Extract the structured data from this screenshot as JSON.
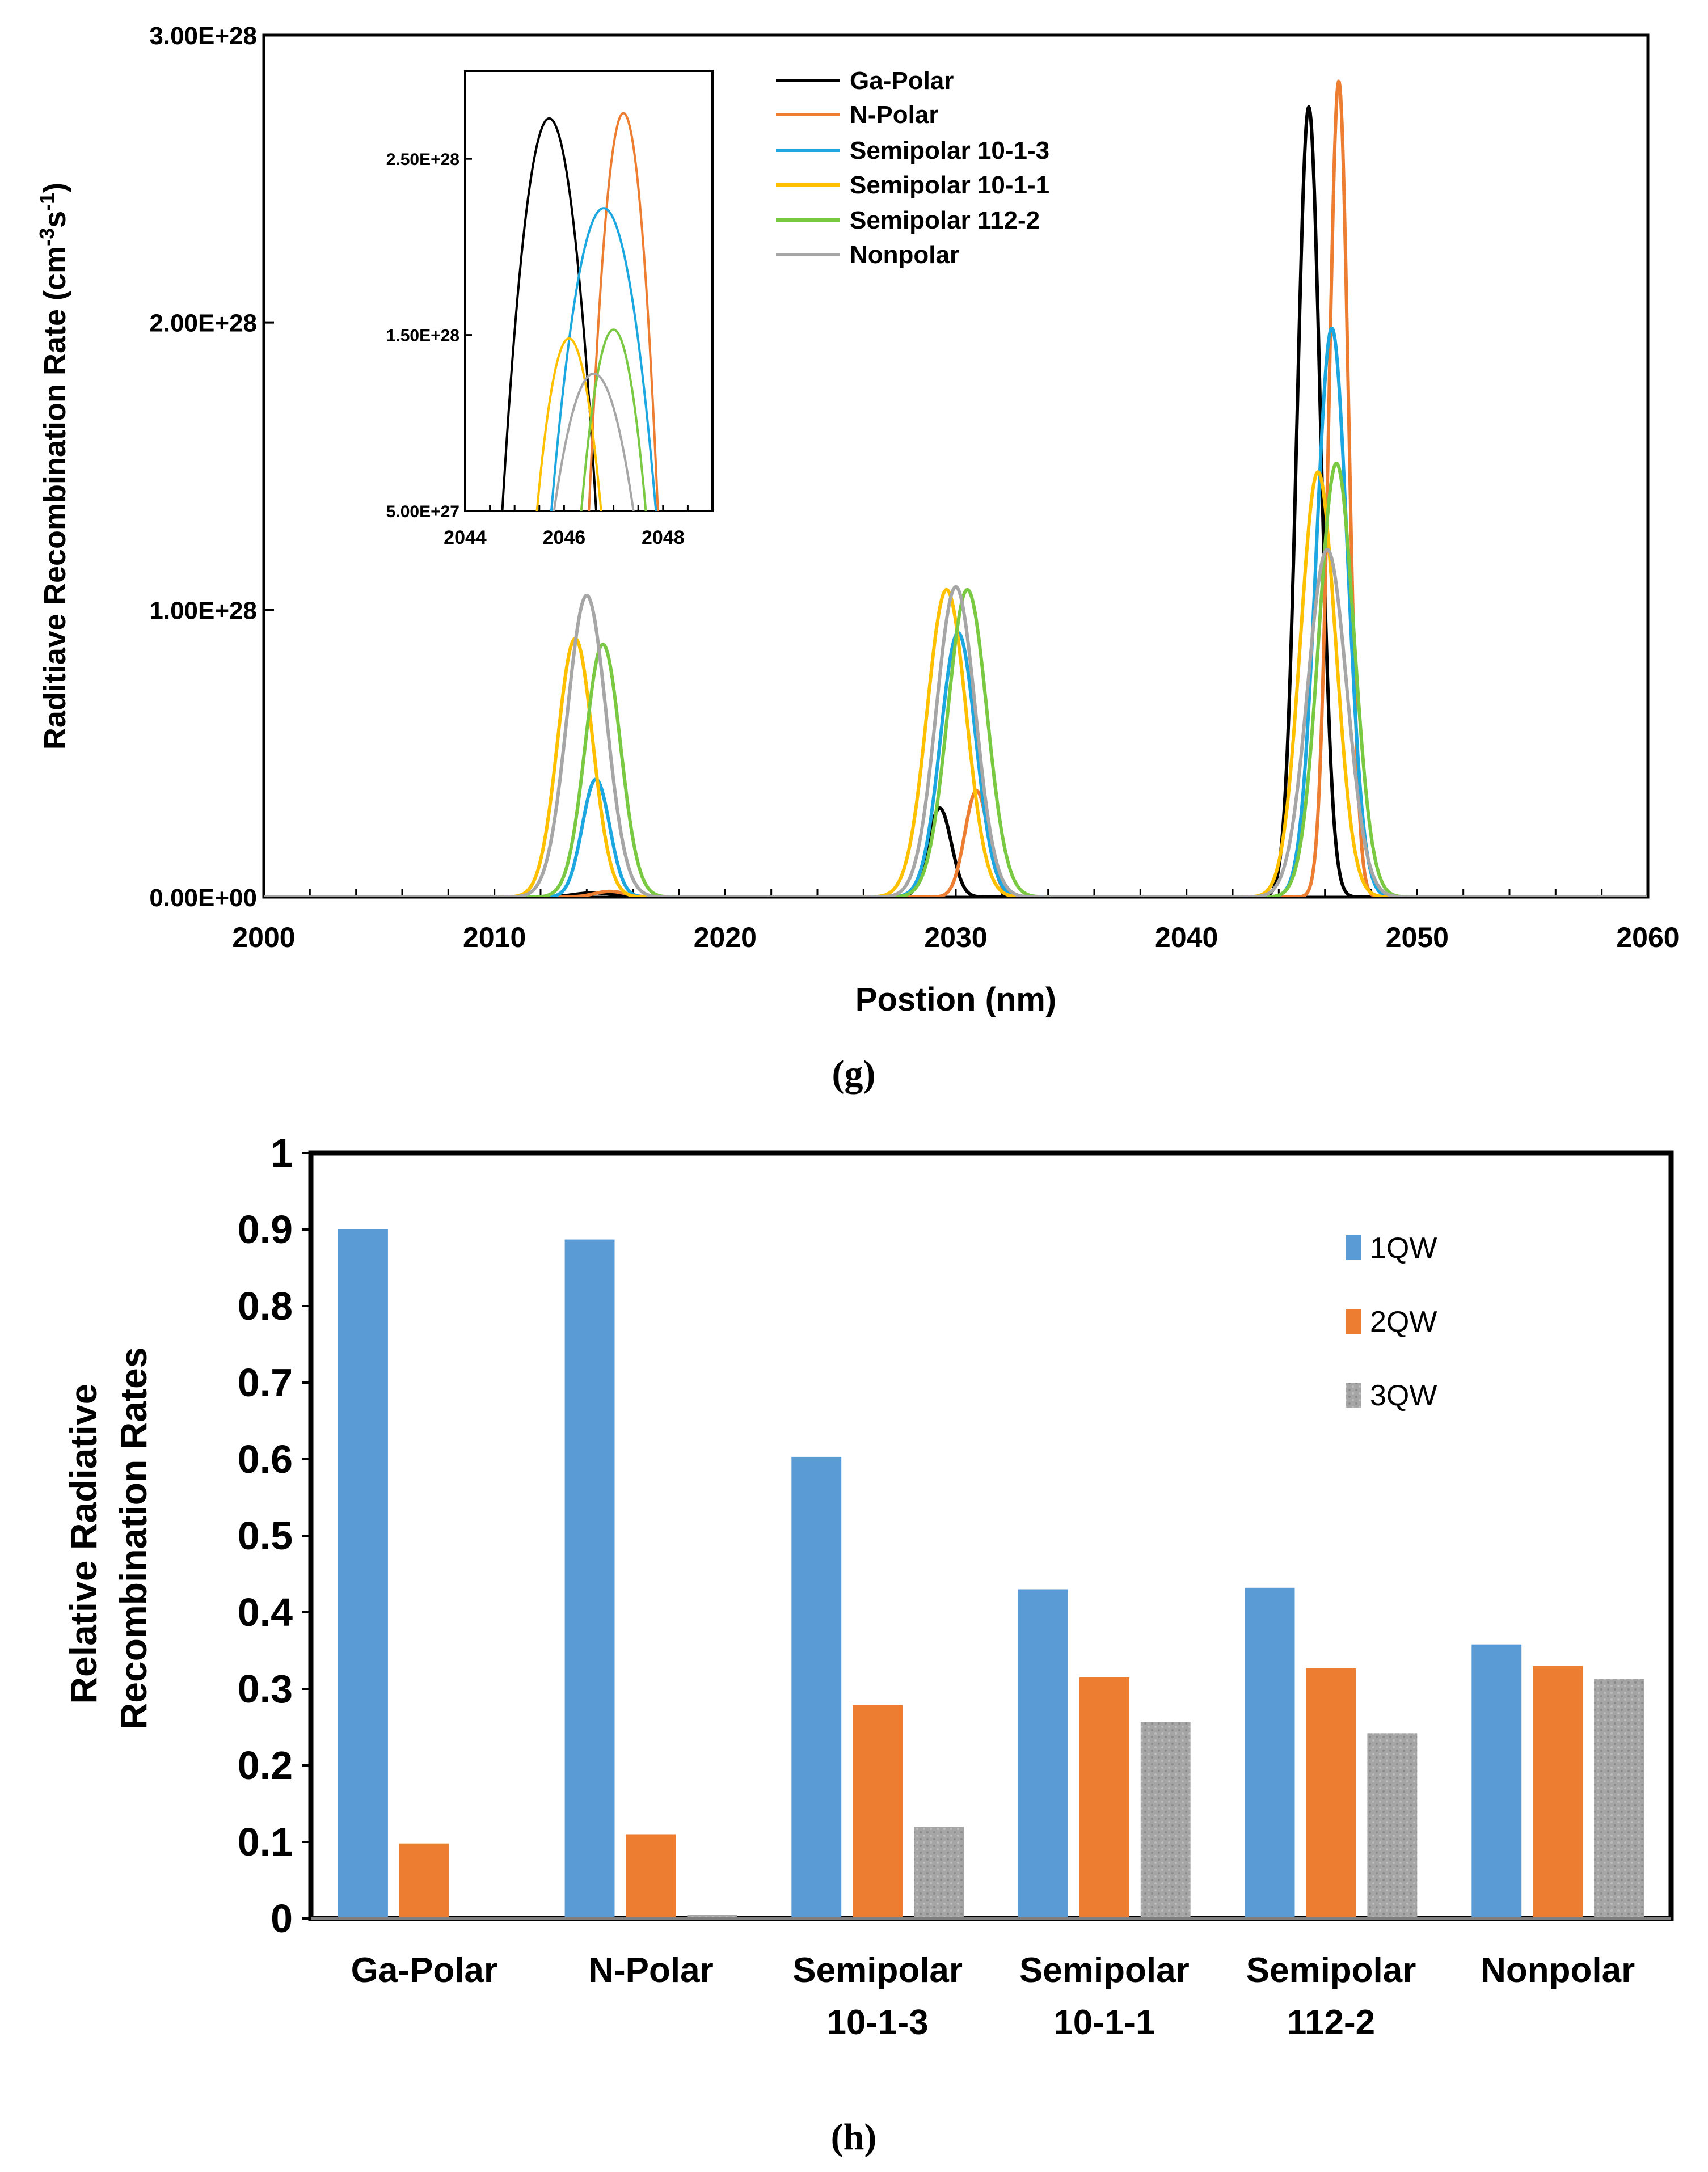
{
  "chart_data": [
    {
      "type": "line",
      "panel_label": "(g)",
      "xlabel": "Postion (nm)",
      "ylabel_main": "Raditiave Recombination Rate (cm",
      "ylabel_sup1": "-3",
      "ylabel_mid": "s",
      "ylabel_sup2": "-1",
      "ylabel_end": ")",
      "xlim": [
        2000,
        2060
      ],
      "ylim": [
        0,
        3e+28
      ],
      "x_ticks": [
        2000,
        2010,
        2020,
        2030,
        2040,
        2050,
        2060
      ],
      "y_ticks": [
        0,
        1e+28,
        2e+28,
        3e+28
      ],
      "y_tick_labels": [
        "0.00E+00",
        "1.00E+28",
        "2.00E+28",
        "3.00E+28"
      ],
      "legend_position": "top-center",
      "series": [
        {
          "name": "Ga-Polar",
          "color": "#000000",
          "peaks": [
            {
              "center": 2014.3,
              "height": 1.5e+26,
              "width": 1.0
            },
            {
              "center": 2029.3,
              "height": 3.1e+27,
              "width": 0.6
            },
            {
              "center": 2045.3,
              "height": 2.75e+28,
              "width": 0.6
            }
          ]
        },
        {
          "name": "N-Polar",
          "color": "#ED7D31",
          "peaks": [
            {
              "center": 2015.0,
              "height": 2e+26,
              "width": 0.8
            },
            {
              "center": 2030.9,
              "height": 3.7e+27,
              "width": 0.6
            },
            {
              "center": 2046.6,
              "height": 2.84e+28,
              "width": 0.5
            }
          ]
        },
        {
          "name": "Semipolar 10-1-3",
          "color": "#1CA7E0",
          "peaks": [
            {
              "center": 2014.4,
              "height": 4.1e+27,
              "width": 0.7
            },
            {
              "center": 2030.1,
              "height": 9.2e+27,
              "width": 0.9
            },
            {
              "center": 2046.3,
              "height": 1.98e+28,
              "width": 0.8
            }
          ]
        },
        {
          "name": "Semipolar 10-1-1",
          "color": "#FFC000",
          "peaks": [
            {
              "center": 2013.5,
              "height": 9e+27,
              "width": 0.9
            },
            {
              "center": 2029.6,
              "height": 1.07e+28,
              "width": 1.0
            },
            {
              "center": 2045.7,
              "height": 1.48e+28,
              "width": 0.9
            }
          ]
        },
        {
          "name": "Semipolar 112-2",
          "color": "#7AC943",
          "peaks": [
            {
              "center": 2014.7,
              "height": 8.8e+27,
              "width": 0.9
            },
            {
              "center": 2030.5,
              "height": 1.07e+28,
              "width": 1.0
            },
            {
              "center": 2046.5,
              "height": 1.51e+28,
              "width": 0.9
            }
          ]
        },
        {
          "name": "Nonpolar",
          "color": "#A6A6A6",
          "peaks": [
            {
              "center": 2014.0,
              "height": 1.05e+28,
              "width": 1.0
            },
            {
              "center": 2030.0,
              "height": 1.08e+28,
              "width": 1.0
            },
            {
              "center": 2046.1,
              "height": 1.21e+28,
              "width": 1.0
            }
          ]
        }
      ],
      "inset": {
        "xlim": [
          2044,
          2049
        ],
        "ylim": [
          5e+27,
          3e+28
        ],
        "x_ticks": [
          2044,
          2046,
          2048
        ],
        "y_ticks": [
          5e+27,
          1.5e+28,
          2.5e+28
        ],
        "y_tick_labels": [
          "5.00E+27",
          "1.50E+28",
          "2.50E+28"
        ],
        "series": [
          {
            "name": "Ga-Polar",
            "center": 2045.7,
            "height": 2.73e+28,
            "width": 0.75
          },
          {
            "name": "N-Polar",
            "center": 2047.2,
            "height": 2.76e+28,
            "width": 0.55
          },
          {
            "name": "Semipolar 10-1-3",
            "center": 2046.8,
            "height": 2.22e+28,
            "width": 0.85
          },
          {
            "name": "Semipolar 10-1-1",
            "center": 2046.1,
            "height": 1.48e+28,
            "width": 0.55
          },
          {
            "name": "Semipolar 112-2",
            "center": 2047.0,
            "height": 1.53e+28,
            "width": 0.55
          },
          {
            "name": "Nonpolar",
            "center": 2046.6,
            "height": 1.28e+28,
            "width": 0.7
          }
        ]
      }
    },
    {
      "type": "bar",
      "panel_label": "(h)",
      "ylabel_line1": "Relative Radiative",
      "ylabel_line2": "Recombination Rates",
      "ylim": [
        0,
        1
      ],
      "y_ticks": [
        0,
        0.1,
        0.2,
        0.3,
        0.4,
        0.5,
        0.6,
        0.7,
        0.8,
        0.9,
        1
      ],
      "y_tick_labels": [
        "0",
        "0.1",
        "0.2",
        "0.3",
        "0.4",
        "0.5",
        "0.6",
        "0.7",
        "0.8",
        "0.9",
        "1"
      ],
      "categories": [
        [
          "Ga-Polar"
        ],
        [
          "N-Polar"
        ],
        [
          "Semipolar",
          "10-1-3"
        ],
        [
          "Semipolar",
          "10-1-1"
        ],
        [
          "Semipolar",
          "112-2"
        ],
        [
          "Nonpolar"
        ]
      ],
      "legend_position": "top-right",
      "series": [
        {
          "name": "1QW",
          "color": "#5B9BD5",
          "values": [
            0.9,
            0.887,
            0.603,
            0.43,
            0.432,
            0.358
          ]
        },
        {
          "name": "2QW",
          "color": "#ED7D31",
          "values": [
            0.098,
            0.11,
            0.279,
            0.315,
            0.327,
            0.33
          ]
        },
        {
          "name": "3QW",
          "color": "#A5A5A5",
          "values": [
            0.0,
            0.005,
            0.12,
            0.257,
            0.242,
            0.313
          ]
        }
      ]
    }
  ]
}
